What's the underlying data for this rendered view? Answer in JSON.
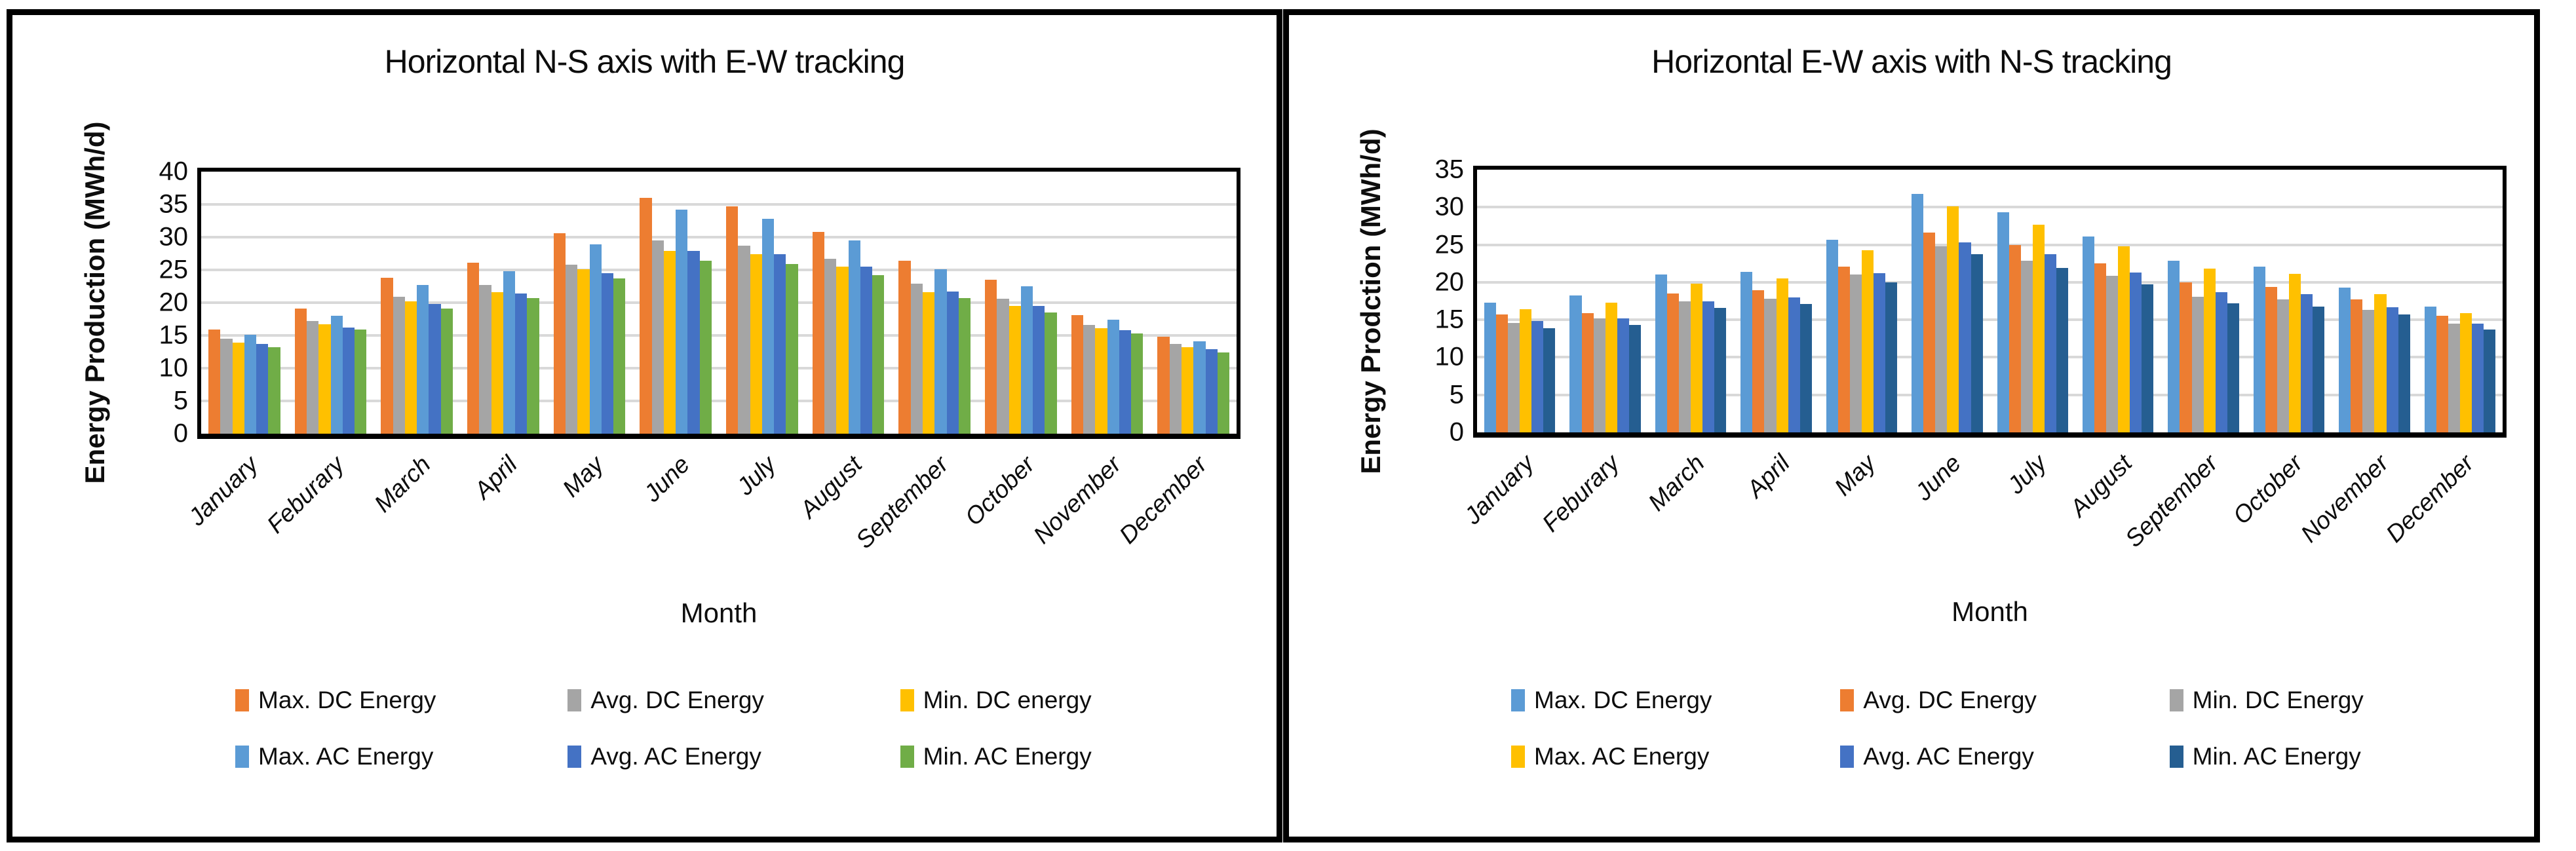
{
  "charts": [
    {
      "title": "Horizontal N-S axis with E-W tracking",
      "y_axis_label": "Energy Production (MWh/d)",
      "x_axis_label": "Month",
      "chart_data": {
        "type": "bar",
        "ylim": [
          0,
          40
        ],
        "y_tick_step": 5,
        "grid": "horizontal",
        "legend_position": "bottom"
      },
      "y_ticks": [
        0,
        5,
        10,
        15,
        20,
        25,
        30,
        35,
        40
      ],
      "categories": [
        "January",
        "Feburary",
        "March",
        "April",
        "May",
        "June",
        "July",
        "August",
        "September",
        "October",
        "November",
        "December"
      ],
      "series": [
        {
          "name": "Max. DC Energy",
          "color": "#ED7D31",
          "values": [
            15.9,
            19.1,
            23.8,
            26.1,
            30.6,
            36.0,
            34.7,
            30.8,
            26.4,
            23.5,
            18.1,
            14.8
          ]
        },
        {
          "name": "Avg. DC Energy",
          "color": "#A5A5A5",
          "values": [
            14.5,
            17.2,
            20.9,
            22.7,
            25.8,
            29.5,
            28.7,
            26.7,
            22.9,
            20.6,
            16.6,
            13.7
          ]
        },
        {
          "name": "Min. DC energy",
          "color": "#FFC000",
          "values": [
            13.9,
            16.7,
            20.2,
            21.6,
            25.1,
            27.9,
            27.4,
            25.5,
            21.6,
            19.5,
            16.1,
            13.2
          ]
        },
        {
          "name": "Max. AC Energy",
          "color": "#5B9BD5",
          "values": [
            15.1,
            18.0,
            22.7,
            24.8,
            28.9,
            34.2,
            32.8,
            29.5,
            25.1,
            22.5,
            17.4,
            14.1
          ]
        },
        {
          "name": "Avg. AC Energy",
          "color": "#4472C4",
          "values": [
            13.7,
            16.2,
            19.8,
            21.4,
            24.5,
            27.9,
            27.4,
            25.5,
            21.7,
            19.5,
            15.8,
            12.9
          ]
        },
        {
          "name": "Min. AC Energy",
          "color": "#70AD47",
          "values": [
            13.2,
            15.9,
            19.1,
            20.7,
            23.7,
            26.4,
            25.9,
            24.2,
            20.7,
            18.5,
            15.3,
            12.4
          ]
        }
      ]
    },
    {
      "title": "Horizontal E-W axis with N-S tracking",
      "y_axis_label": "Energy Prodction (MWh/d)",
      "x_axis_label": "Month",
      "chart_data": {
        "type": "bar",
        "ylim": [
          0,
          35
        ],
        "y_tick_step": 5,
        "grid": "horizontal",
        "legend_position": "bottom"
      },
      "y_ticks": [
        0,
        5,
        10,
        15,
        20,
        25,
        30,
        35
      ],
      "categories": [
        "January",
        "Feburary",
        "March",
        "April",
        "May",
        "June",
        "July",
        "August",
        "September",
        "October",
        "November",
        "December"
      ],
      "series": [
        {
          "name": "Max. DC Energy",
          "color": "#5B9BD5",
          "values": [
            17.3,
            18.2,
            21.0,
            21.4,
            25.7,
            31.8,
            29.3,
            26.1,
            22.9,
            22.1,
            19.3,
            16.8
          ]
        },
        {
          "name": "Avg. DC Energy",
          "color": "#ED7D31",
          "values": [
            15.7,
            15.9,
            18.5,
            18.9,
            22.1,
            26.6,
            25.0,
            22.5,
            20.0,
            19.4,
            17.7,
            15.5
          ]
        },
        {
          "name": "Min. DC Energy",
          "color": "#A5A5A5",
          "values": [
            14.6,
            15.2,
            17.5,
            17.8,
            21.0,
            24.8,
            22.9,
            20.9,
            18.1,
            17.7,
            16.3,
            14.5
          ]
        },
        {
          "name": "Max. AC Energy",
          "color": "#FFC000",
          "values": [
            16.4,
            17.3,
            19.8,
            20.5,
            24.3,
            30.1,
            27.7,
            24.8,
            21.8,
            21.1,
            18.4,
            15.9
          ]
        },
        {
          "name": "Avg. AC Energy",
          "color": "#4472C4",
          "values": [
            14.8,
            15.2,
            17.5,
            18.0,
            21.2,
            25.3,
            23.7,
            21.3,
            18.7,
            18.4,
            16.7,
            14.5
          ]
        },
        {
          "name": "Min. AC Energy",
          "color": "#255E91",
          "values": [
            13.9,
            14.3,
            16.6,
            17.1,
            20.0,
            23.7,
            21.9,
            19.7,
            17.2,
            16.8,
            15.7,
            13.7
          ]
        }
      ]
    }
  ]
}
